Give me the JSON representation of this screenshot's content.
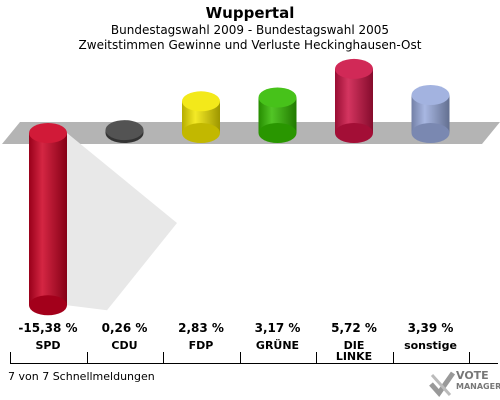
{
  "chart_data": {
    "type": "bar",
    "title": "Wuppertal",
    "subtitle_1": "Bundestagswahl 2009 - Bundestagswahl 2005",
    "subtitle_2": "Zweitstimmen Gewinne und Verluste Heckinghausen-Ost",
    "categories": [
      "SPD",
      "CDU",
      "FDP",
      "GRÜNE",
      "DIE LINKE",
      "sonstige"
    ],
    "values": [
      -15.38,
      0.26,
      2.83,
      3.17,
      5.72,
      3.39
    ],
    "value_labels": [
      "-15,38 %",
      "0,26 %",
      "2,83 %",
      "3,17 %",
      "5,72 %",
      "3,39 %"
    ],
    "colors": [
      "#cc0022",
      "#404040",
      "#f2e600",
      "#33bb00",
      "#cc1144",
      "#99aadd"
    ]
  },
  "footer": "7 von 7 Schnellmeldungen",
  "logo": {
    "line1": "VOTE",
    "line2": "MANAGER"
  }
}
